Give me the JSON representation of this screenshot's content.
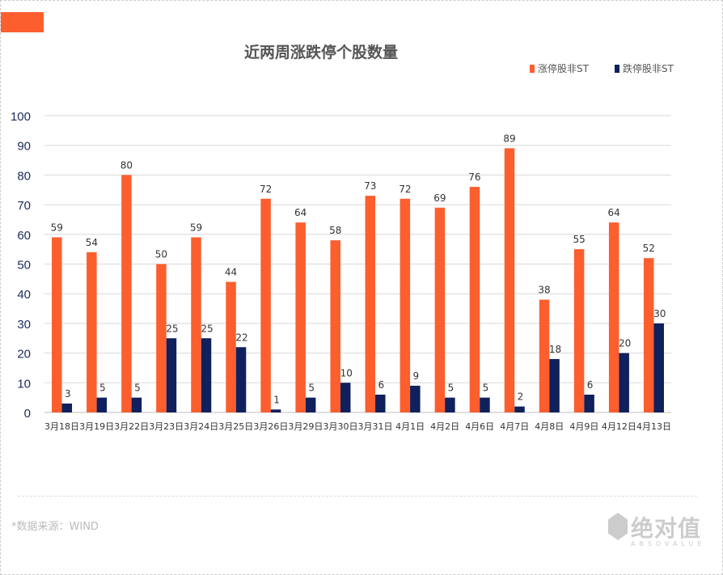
{
  "header": {
    "title": "近两周涨跌停个股数量"
  },
  "footer": {
    "source": "*数据来源：WIND",
    "logo_cn": "绝对值",
    "logo_en": "ABSOVALUE"
  },
  "colors": {
    "up": "#fc5e2e",
    "down": "#0f205c",
    "grid": "#d9d9d9"
  },
  "chart_data": {
    "type": "bar",
    "title": "近两周涨跌停个股数量",
    "categories": [
      "3月18日",
      "3月19日",
      "3月22日",
      "3月23日",
      "3月24日",
      "3月25日",
      "3月26日",
      "3月29日",
      "3月30日",
      "3月31日",
      "4月1日",
      "4月2日",
      "4月6日",
      "4月7日",
      "4月8日",
      "4月9日",
      "4月12日",
      "4月13日"
    ],
    "series": [
      {
        "name": "涨停股非ST",
        "values": [
          59,
          54,
          80,
          50,
          59,
          44,
          72,
          64,
          58,
          73,
          72,
          69,
          76,
          89,
          38,
          55,
          64,
          52
        ]
      },
      {
        "name": "跌停股非ST",
        "values": [
          3,
          5,
          5,
          25,
          25,
          22,
          1,
          5,
          10,
          6,
          9,
          5,
          5,
          2,
          18,
          6,
          20,
          30
        ]
      }
    ],
    "ylim": [
      0,
      100
    ],
    "yticks": [
      0,
      10,
      20,
      30,
      40,
      50,
      60,
      70,
      80,
      90,
      100
    ],
    "grid": true,
    "legend": "top-right",
    "xlabel": "",
    "ylabel": ""
  }
}
